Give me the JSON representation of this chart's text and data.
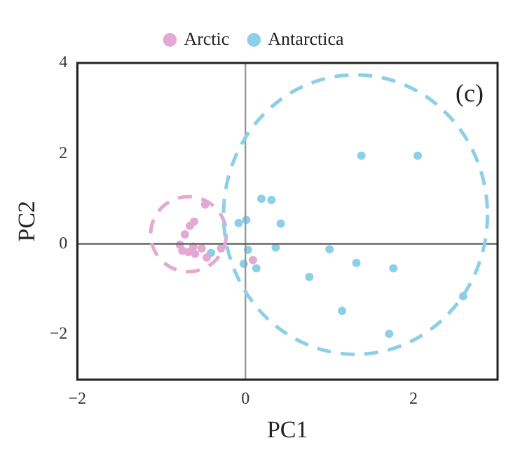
{
  "chart_data": {
    "type": "scatter",
    "xlabel": "PC1",
    "ylabel": "PC2",
    "annotations": [
      "(c)"
    ],
    "xlim": [
      -2,
      3
    ],
    "ylim": [
      -3,
      4
    ],
    "xticks": [
      -2,
      0,
      2
    ],
    "yticks": [
      -2,
      0,
      2,
      4
    ],
    "grid": false,
    "legend": "top",
    "marker": "circle",
    "ref_lines": [
      {
        "axis": "x",
        "value": 0,
        "color": "#999999"
      },
      {
        "axis": "y",
        "value": 0,
        "color": "#666666"
      }
    ],
    "series": [
      {
        "name": "Arctic",
        "color": "#e3a9d3",
        "x": [
          -0.48,
          -0.61,
          -0.66,
          -0.72,
          -0.78,
          -0.62,
          -0.46,
          -0.75,
          -0.68,
          -0.6,
          -0.52,
          -0.29,
          0.09
        ],
        "values": [
          0.87,
          0.49,
          0.4,
          0.21,
          -0.02,
          -0.06,
          -0.3,
          -0.15,
          -0.18,
          -0.22,
          -0.1,
          -0.1,
          -0.36
        ]
      },
      {
        "name": "Antarctica",
        "color": "#8ccfe8",
        "x": [
          0.19,
          0.31,
          -0.08,
          0.01,
          0.42,
          0.03,
          0.36,
          1.0,
          -0.02,
          0.13,
          1.32,
          1.76,
          0.76,
          1.15,
          1.71,
          2.59,
          1.38,
          2.05,
          -0.41
        ],
        "values": [
          1.0,
          0.97,
          0.46,
          0.53,
          0.45,
          -0.13,
          -0.08,
          -0.12,
          -0.44,
          -0.54,
          -0.42,
          -0.54,
          -0.73,
          -1.48,
          -1.99,
          -1.16,
          1.95,
          1.95,
          -0.2
        ]
      }
    ]
  }
}
